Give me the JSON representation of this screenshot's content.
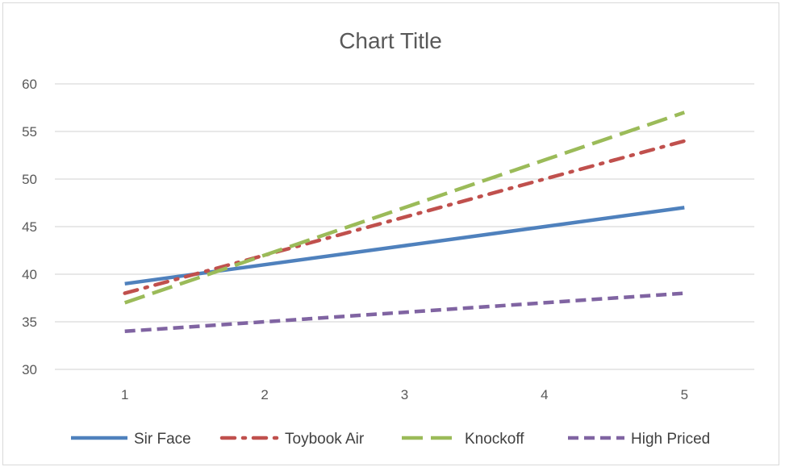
{
  "chart_data": {
    "type": "line",
    "title": "Chart Title",
    "xlabel": "",
    "ylabel": "",
    "x": [
      1,
      2,
      3,
      4,
      5
    ],
    "ylim": [
      30,
      60
    ],
    "yticks": [
      30,
      35,
      40,
      45,
      50,
      55,
      60
    ],
    "grid": true,
    "legend_position": "bottom",
    "series": [
      {
        "name": "Sir Face",
        "values": [
          39,
          41,
          43,
          45,
          47
        ],
        "color": "#4f81bd",
        "style": "solid"
      },
      {
        "name": "Toybook Air",
        "values": [
          38,
          42,
          46,
          50,
          54
        ],
        "color": "#c0504d",
        "style": "dash-dot"
      },
      {
        "name": "Knockoff",
        "values": [
          37,
          42,
          47,
          52,
          57
        ],
        "color": "#9bbb59",
        "style": "long-dash"
      },
      {
        "name": "High Priced",
        "values": [
          34,
          35,
          36,
          37,
          38
        ],
        "color": "#8064a2",
        "style": "dash"
      }
    ]
  }
}
